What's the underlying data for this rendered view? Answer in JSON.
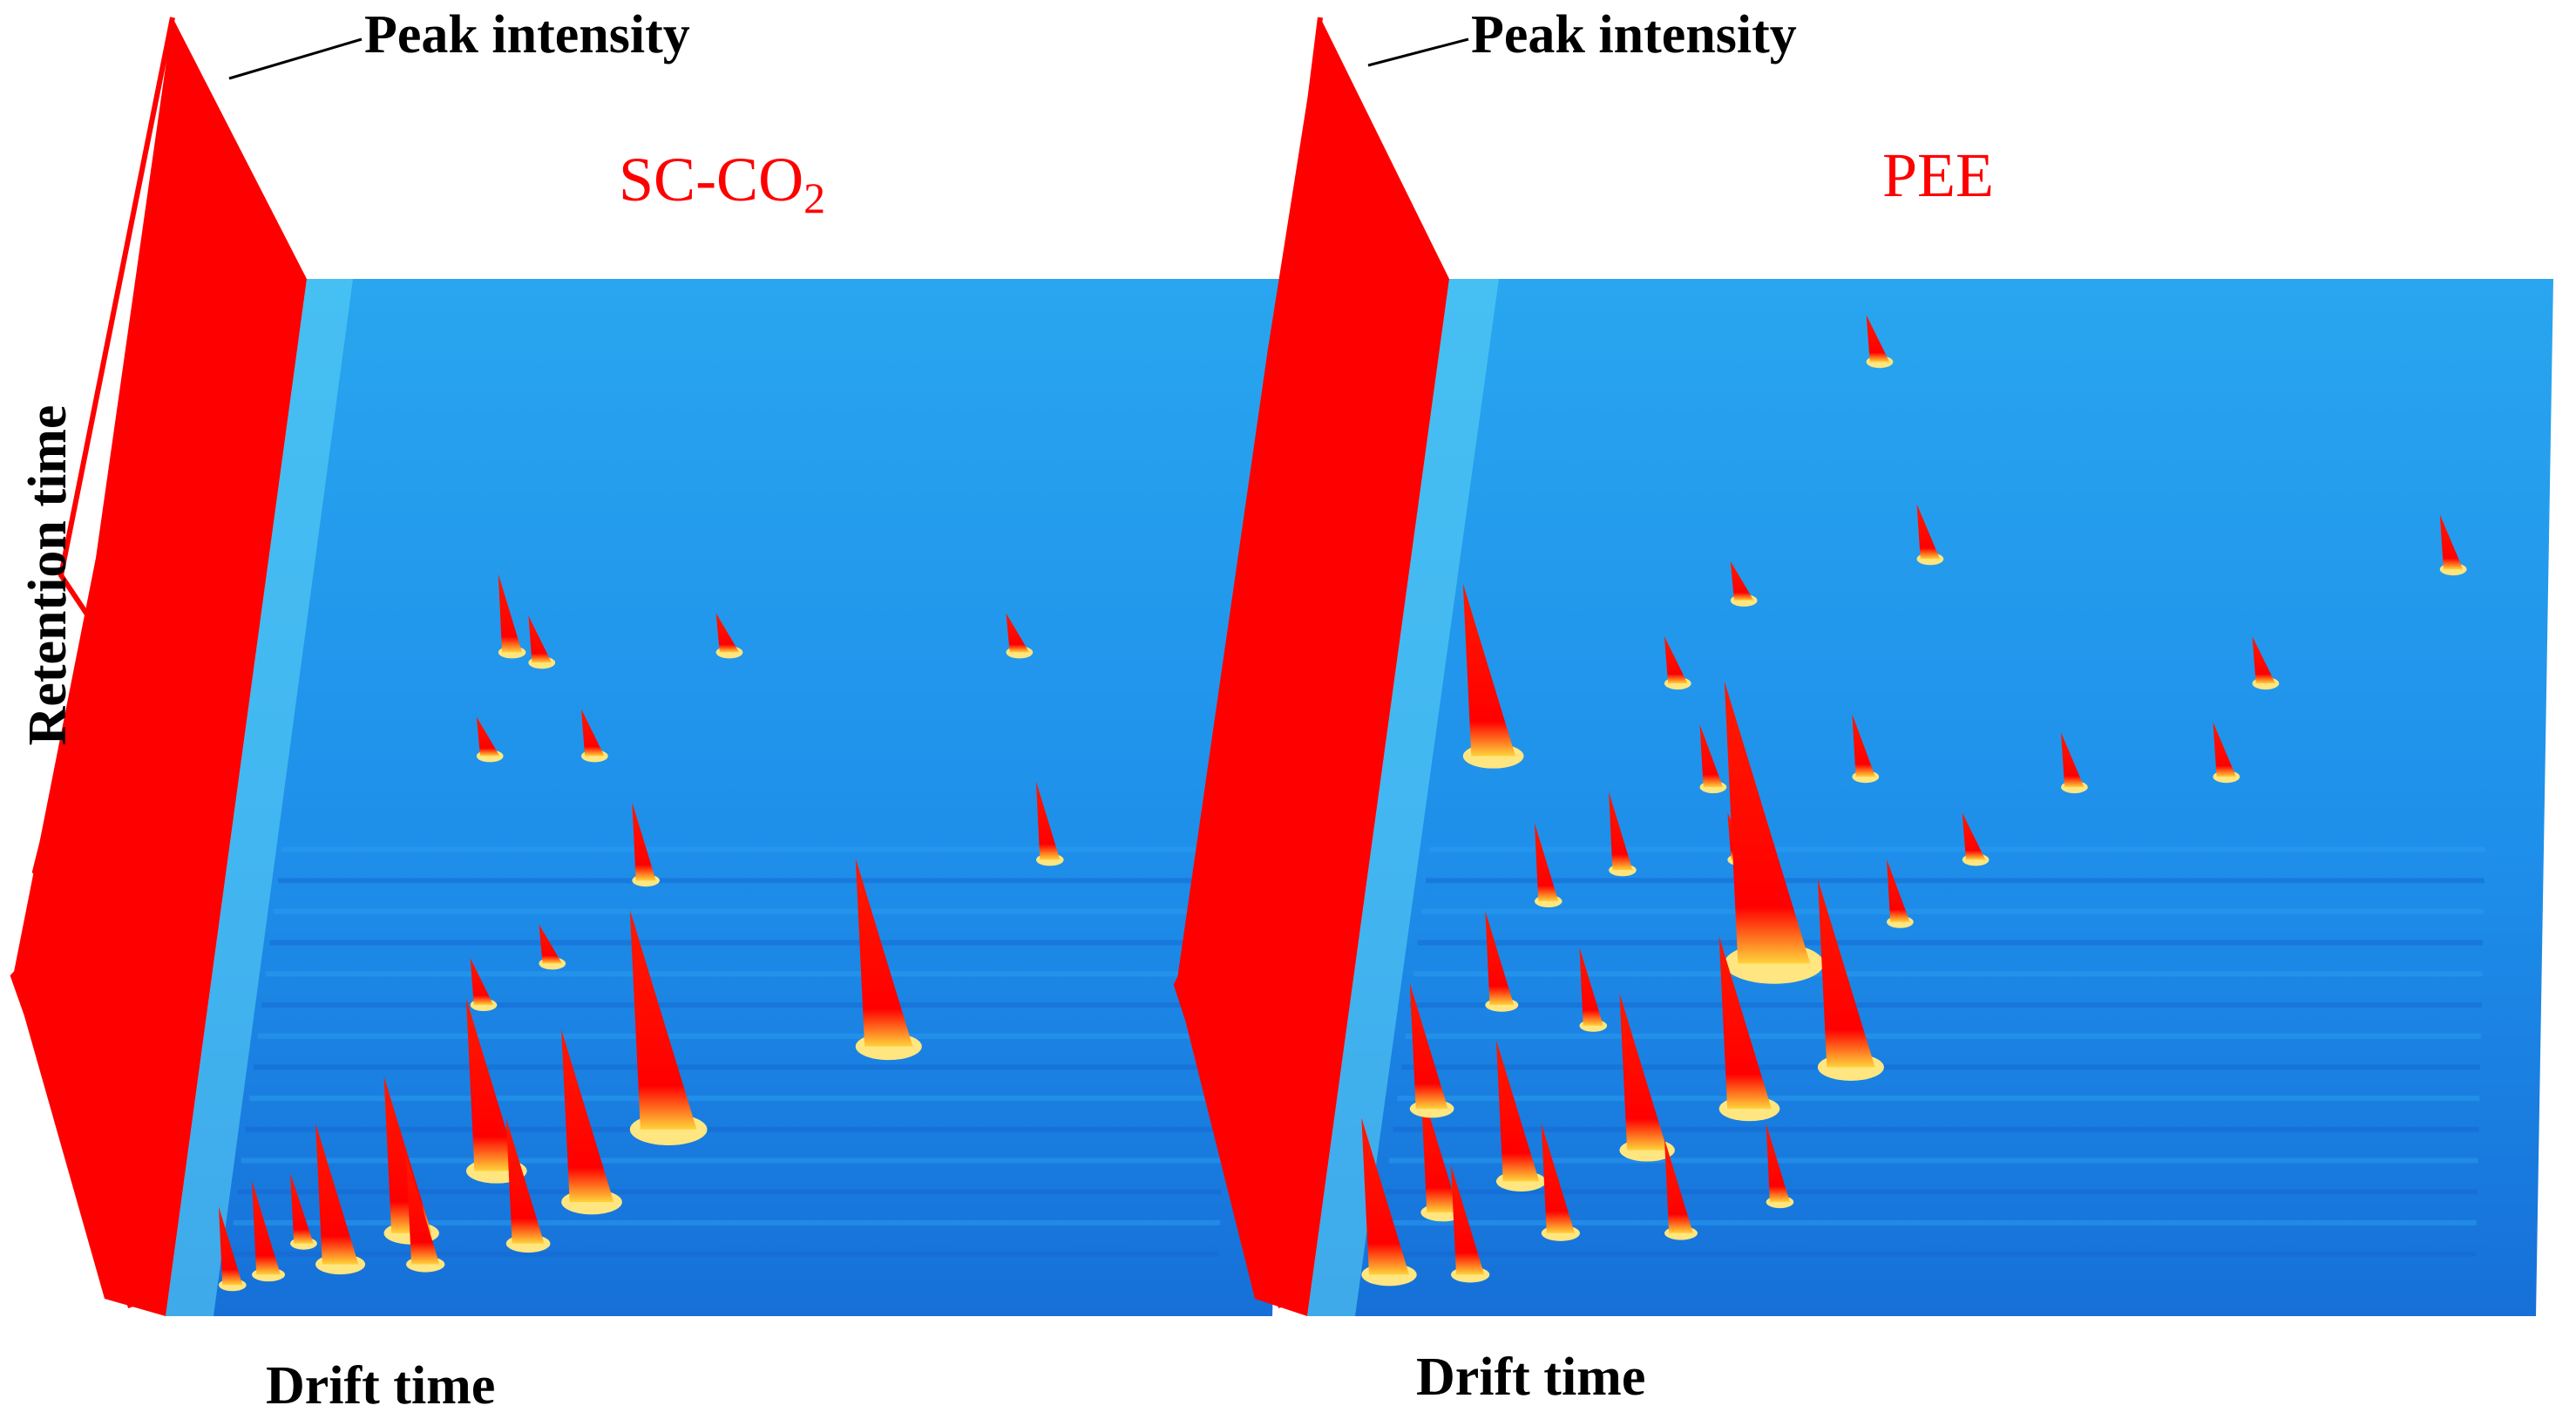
{
  "chart_data": {
    "type": "heatmap",
    "description_note": "Two 3D GC-IMS topographic plots (spectra) compared side by side",
    "panels": [
      {
        "title_main": "SC-CO",
        "title_sub": "2",
        "peak_label": "Peak intensity",
        "xlabel": "Drift time",
        "ylabel": "Retention time",
        "peak_color": "#ff0000",
        "background_color": "#1e90ee",
        "peaks": [
          {
            "dt": 0.24,
            "rt": 0.36,
            "h": 0.1
          },
          {
            "dt": 0.27,
            "rt": 0.37,
            "h": 0.06
          },
          {
            "dt": 0.45,
            "rt": 0.36,
            "h": 0.05
          },
          {
            "dt": 0.73,
            "rt": 0.36,
            "h": 0.05
          },
          {
            "dt": 0.23,
            "rt": 0.46,
            "h": 0.05
          },
          {
            "dt": 0.33,
            "rt": 0.46,
            "h": 0.06
          },
          {
            "dt": 0.39,
            "rt": 0.58,
            "h": 0.1
          },
          {
            "dt": 0.77,
            "rt": 0.56,
            "h": 0.1
          },
          {
            "dt": 0.62,
            "rt": 0.74,
            "h": 0.24
          },
          {
            "dt": 0.31,
            "rt": 0.66,
            "h": 0.05
          },
          {
            "dt": 0.25,
            "rt": 0.7,
            "h": 0.06
          },
          {
            "dt": 0.42,
            "rt": 0.82,
            "h": 0.28
          },
          {
            "dt": 0.36,
            "rt": 0.89,
            "h": 0.22
          },
          {
            "dt": 0.27,
            "rt": 0.86,
            "h": 0.22
          },
          {
            "dt": 0.2,
            "rt": 0.92,
            "h": 0.2
          },
          {
            "dt": 0.14,
            "rt": 0.95,
            "h": 0.18
          },
          {
            "dt": 0.08,
            "rt": 0.96,
            "h": 0.12
          },
          {
            "dt": 0.05,
            "rt": 0.97,
            "h": 0.1
          },
          {
            "dt": 0.31,
            "rt": 0.93,
            "h": 0.16
          },
          {
            "dt": 0.22,
            "rt": 0.95,
            "h": 0.14
          },
          {
            "dt": 0.11,
            "rt": 0.93,
            "h": 0.09
          }
        ]
      },
      {
        "title_main": "PEE",
        "title_sub": "",
        "peak_label": "Peak intensity",
        "xlabel": "Drift time",
        "ylabel": "",
        "peak_color": "#ff0000",
        "background_color": "#1e90ee",
        "peaks": [
          {
            "dt": 0.39,
            "rt": 0.08,
            "h": 0.06
          },
          {
            "dt": 0.45,
            "rt": 0.27,
            "h": 0.07
          },
          {
            "dt": 0.91,
            "rt": 0.28,
            "h": 0.07
          },
          {
            "dt": 0.29,
            "rt": 0.31,
            "h": 0.05
          },
          {
            "dt": 0.24,
            "rt": 0.39,
            "h": 0.06
          },
          {
            "dt": 0.75,
            "rt": 0.39,
            "h": 0.06
          },
          {
            "dt": 0.08,
            "rt": 0.46,
            "h": 0.22
          },
          {
            "dt": 0.28,
            "rt": 0.49,
            "h": 0.08
          },
          {
            "dt": 0.41,
            "rt": 0.48,
            "h": 0.08
          },
          {
            "dt": 0.59,
            "rt": 0.49,
            "h": 0.07
          },
          {
            "dt": 0.72,
            "rt": 0.48,
            "h": 0.07
          },
          {
            "dt": 0.31,
            "rt": 0.56,
            "h": 0.06
          },
          {
            "dt": 0.51,
            "rt": 0.56,
            "h": 0.06
          },
          {
            "dt": 0.21,
            "rt": 0.57,
            "h": 0.1
          },
          {
            "dt": 0.15,
            "rt": 0.6,
            "h": 0.1
          },
          {
            "dt": 0.45,
            "rt": 0.62,
            "h": 0.08
          },
          {
            "dt": 0.33,
            "rt": 0.66,
            "h": 0.36
          },
          {
            "dt": 0.41,
            "rt": 0.76,
            "h": 0.24
          },
          {
            "dt": 0.33,
            "rt": 0.8,
            "h": 0.22
          },
          {
            "dt": 0.25,
            "rt": 0.84,
            "h": 0.2
          },
          {
            "dt": 0.15,
            "rt": 0.87,
            "h": 0.18
          },
          {
            "dt": 0.09,
            "rt": 0.9,
            "h": 0.16
          },
          {
            "dt": 0.19,
            "rt": 0.92,
            "h": 0.14
          },
          {
            "dt": 0.29,
            "rt": 0.92,
            "h": 0.12
          },
          {
            "dt": 0.05,
            "rt": 0.96,
            "h": 0.2
          },
          {
            "dt": 0.12,
            "rt": 0.96,
            "h": 0.14
          },
          {
            "dt": 0.37,
            "rt": 0.89,
            "h": 0.1
          },
          {
            "dt": 0.2,
            "rt": 0.72,
            "h": 0.1
          },
          {
            "dt": 0.12,
            "rt": 0.7,
            "h": 0.12
          },
          {
            "dt": 0.07,
            "rt": 0.8,
            "h": 0.16
          }
        ]
      }
    ]
  }
}
